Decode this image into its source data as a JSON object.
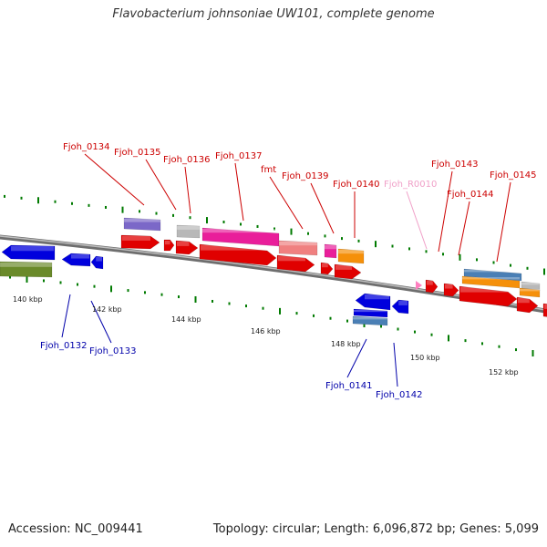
{
  "title": "Flavobacterium johnsoniae UW101, complete genome",
  "footer": {
    "accession": "Accession: NC_009441",
    "summary": "Topology: circular; Length: 6,096,872 bp; Genes: 5,099"
  },
  "colors": {
    "cds_forward": "#e00000",
    "cds_reverse": "#0000dd",
    "trna": "#ff80c0",
    "cog_purple": "#7b68c8",
    "cog_grey": "#b8b8b8",
    "cog_magenta": "#e91e9a",
    "cog_salmon": "#f08080",
    "cog_orange": "#f5900a",
    "cog_steelblue": "#4a7fb5",
    "cog_olive": "#6a8a2a",
    "tick_green": "#007a00",
    "backbone": "#8a8a8a"
  },
  "scale_labels": [
    "140 kbp",
    "142 kbp",
    "144 kbp",
    "146 kbp",
    "148 kbp",
    "150 kbp",
    "152 kbp"
  ],
  "gene_labels_top": [
    {
      "name": "Fjoh_0134",
      "color": "#cc0000"
    },
    {
      "name": "Fjoh_0135",
      "color": "#cc0000"
    },
    {
      "name": "Fjoh_0136",
      "color": "#cc0000"
    },
    {
      "name": "Fjoh_0137",
      "color": "#cc0000"
    },
    {
      "name": "fmt",
      "color": "#cc0000"
    },
    {
      "name": "Fjoh_0139",
      "color": "#cc0000"
    },
    {
      "name": "Fjoh_0140",
      "color": "#cc0000"
    },
    {
      "name": "Fjoh_R0010",
      "color": "#f0a0c8"
    },
    {
      "name": "Fjoh_0143",
      "color": "#cc0000"
    },
    {
      "name": "Fjoh_0144",
      "color": "#cc0000"
    },
    {
      "name": "Fjoh_0145",
      "color": "#cc0000"
    }
  ],
  "gene_labels_bottom": [
    {
      "name": "Fjoh_0132",
      "color": "#0000aa"
    },
    {
      "name": "Fjoh_0133",
      "color": "#0000aa"
    },
    {
      "name": "Fjoh_0141",
      "color": "#0000aa"
    },
    {
      "name": "Fjoh_0142",
      "color": "#0000aa"
    }
  ]
}
